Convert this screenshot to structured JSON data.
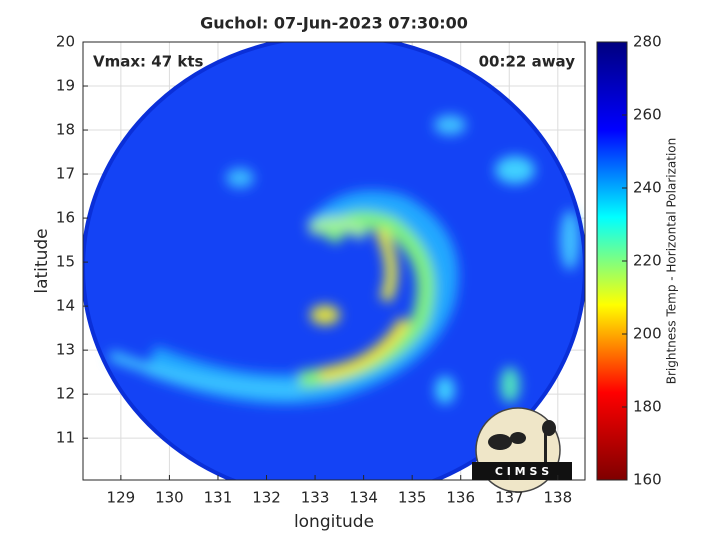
{
  "chart_data": {
    "type": "image",
    "title": "Guchol: 07-Jun-2023 07:30:00",
    "annotations": [
      "Vmax: 47 kts",
      "00:22 away"
    ],
    "xlabel": "longitude",
    "ylabel": "latitude",
    "xlim": [
      128.22,
      138.56
    ],
    "xticks": [
      129,
      130,
      131,
      132,
      133,
      134,
      135,
      136,
      137,
      138
    ],
    "ylim": [
      10.05,
      20
    ],
    "yticks": [
      11,
      12,
      13,
      14,
      15,
      16,
      17,
      18,
      19,
      20
    ],
    "grid": true,
    "colorbar": {
      "label": "Brightness Temp - Horizontal Polarization",
      "lim": [
        160,
        280
      ],
      "ticks": [
        160,
        180,
        200,
        220,
        240,
        260,
        280
      ],
      "colors": [
        "#7f0000",
        "#ff0000",
        "#ffff00",
        "#00ffff",
        "#0000ff",
        "#00007f"
      ]
    },
    "logo": "C I M S S"
  }
}
